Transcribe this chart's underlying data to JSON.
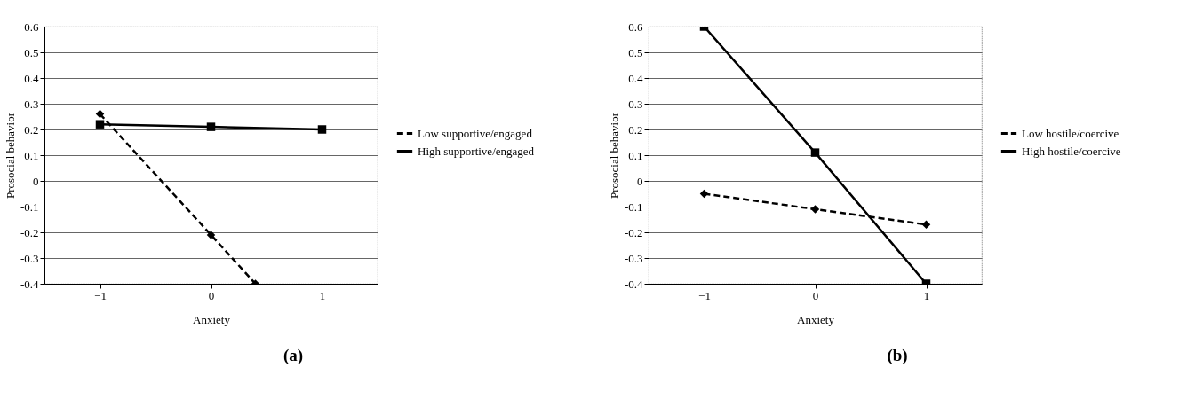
{
  "chart_data": [
    {
      "type": "line",
      "xlabel": "Anxiety",
      "ylabel": "Prosocial behavior",
      "annotations": [
        "(a)"
      ],
      "x": [
        -1,
        0,
        1
      ],
      "xlim": [
        -1.5,
        1.5
      ],
      "xticks": [
        {
          "value": -1,
          "label": "−1"
        },
        {
          "value": 0,
          "label": "0"
        },
        {
          "value": 1,
          "label": "1"
        }
      ],
      "ylim": [
        -0.4,
        0.6
      ],
      "yticks": [
        -0.4,
        -0.3,
        -0.2,
        -0.1,
        0,
        0.1,
        0.2,
        0.3,
        0.4,
        0.5,
        0.6
      ],
      "grid": "y",
      "legend": "right",
      "series": [
        {
          "name": "Low supportive/engaged",
          "color": "#000000",
          "line_style": "dashed",
          "marker": "diamond",
          "x": [
            -1,
            0,
            0.4
          ],
          "values": [
            0.26,
            -0.21,
            -0.4
          ]
        },
        {
          "name": "High supportive/engaged",
          "color": "#000000",
          "line_style": "solid",
          "marker": "square",
          "values": [
            0.22,
            0.21,
            0.2
          ]
        }
      ]
    },
    {
      "type": "line",
      "xlabel": "Anxiety",
      "ylabel": "Prosocial behavior",
      "annotations": [
        "(b)"
      ],
      "x": [
        -1,
        0,
        1
      ],
      "xlim": [
        -1.5,
        1.5
      ],
      "xticks": [
        {
          "value": -1,
          "label": "−1"
        },
        {
          "value": 0,
          "label": "0"
        },
        {
          "value": 1,
          "label": "1"
        }
      ],
      "ylim": [
        -0.4,
        0.6
      ],
      "yticks": [
        -0.4,
        -0.3,
        -0.2,
        -0.1,
        0,
        0.1,
        0.2,
        0.3,
        0.4,
        0.5,
        0.6
      ],
      "grid": "y",
      "legend": "right",
      "series": [
        {
          "name": "Low  hostile/coercive",
          "color": "#000000",
          "line_style": "dashed",
          "marker": "diamond",
          "values": [
            -0.05,
            -0.11,
            -0.17
          ]
        },
        {
          "name": "High  hostile/coercive",
          "color": "#000000",
          "line_style": "solid",
          "marker": "square",
          "values": [
            0.6,
            0.11,
            -0.4
          ]
        }
      ]
    }
  ]
}
